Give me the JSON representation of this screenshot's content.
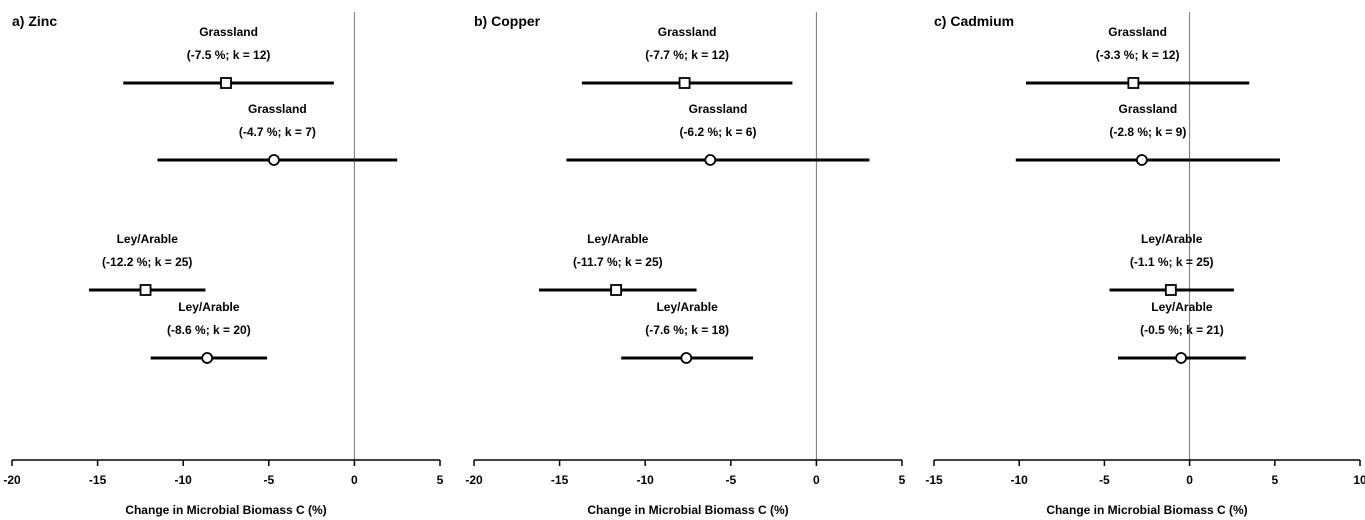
{
  "chart_data": [
    {
      "type": "forest",
      "title": "a) Zinc",
      "xlabel": "Change in Microbial Biomass C (%)",
      "xlim": [
        -20,
        5
      ],
      "xticks": [
        -20,
        -15,
        -10,
        -5,
        0,
        5
      ],
      "reference_line": 0,
      "estimates": [
        {
          "name": "Grassland",
          "summary": "(-7.5 %; k = 12)",
          "mean": -7.5,
          "ci": [
            -13.5,
            -1.2
          ],
          "marker": "square"
        },
        {
          "name": "Grassland",
          "summary": "(-4.7 %; k = 7)",
          "mean": -4.7,
          "ci": [
            -11.5,
            2.5
          ],
          "marker": "circle"
        },
        {
          "name": "Ley/Arable",
          "summary": "(-12.2 %; k = 25)",
          "mean": -12.2,
          "ci": [
            -15.5,
            -8.7
          ],
          "marker": "square"
        },
        {
          "name": "Ley/Arable",
          "summary": "(-8.6 %; k = 20)",
          "mean": -8.6,
          "ci": [
            -11.9,
            -5.1
          ],
          "marker": "circle"
        }
      ]
    },
    {
      "type": "forest",
      "title": "b) Copper",
      "xlabel": "Change in Microbial Biomass C (%)",
      "xlim": [
        -20,
        5
      ],
      "xticks": [
        -20,
        -15,
        -10,
        -5,
        0,
        5
      ],
      "reference_line": 0,
      "estimates": [
        {
          "name": "Grassland",
          "summary": "(-7.7 %; k = 12)",
          "mean": -7.7,
          "ci": [
            -13.7,
            -1.4
          ],
          "marker": "square"
        },
        {
          "name": "Grassland",
          "summary": "(-6.2 %; k = 6)",
          "mean": -6.2,
          "ci": [
            -14.6,
            3.1
          ],
          "marker": "circle"
        },
        {
          "name": "Ley/Arable",
          "summary": "(-11.7 %; k = 25)",
          "mean": -11.7,
          "ci": [
            -16.2,
            -7.0
          ],
          "marker": "square"
        },
        {
          "name": "Ley/Arable",
          "summary": "(-7.6 %; k = 18)",
          "mean": -7.6,
          "ci": [
            -11.4,
            -3.7
          ],
          "marker": "circle"
        }
      ]
    },
    {
      "type": "forest",
      "title": "c) Cadmium",
      "xlabel": "Change in Microbial Biomass C (%)",
      "xlim": [
        -15,
        10
      ],
      "xticks": [
        -15,
        -10,
        -5,
        0,
        5,
        10
      ],
      "reference_line": 0,
      "estimates": [
        {
          "name": "Grassland",
          "summary": "(-3.3 %; k = 12)",
          "mean": -3.3,
          "ci": [
            -9.6,
            3.5
          ],
          "marker": "square"
        },
        {
          "name": "Grassland",
          "summary": "(-2.8 %; k = 9)",
          "mean": -2.8,
          "ci": [
            -10.2,
            5.3
          ],
          "marker": "circle"
        },
        {
          "name": "Ley/Arable",
          "summary": "(-1.1 %; k = 25)",
          "mean": -1.1,
          "ci": [
            -4.7,
            2.6
          ],
          "marker": "square"
        },
        {
          "name": "Ley/Arable",
          "summary": "(-0.5 %; k = 21)",
          "mean": -0.5,
          "ci": [
            -4.2,
            3.3
          ],
          "marker": "circle"
        }
      ]
    }
  ]
}
